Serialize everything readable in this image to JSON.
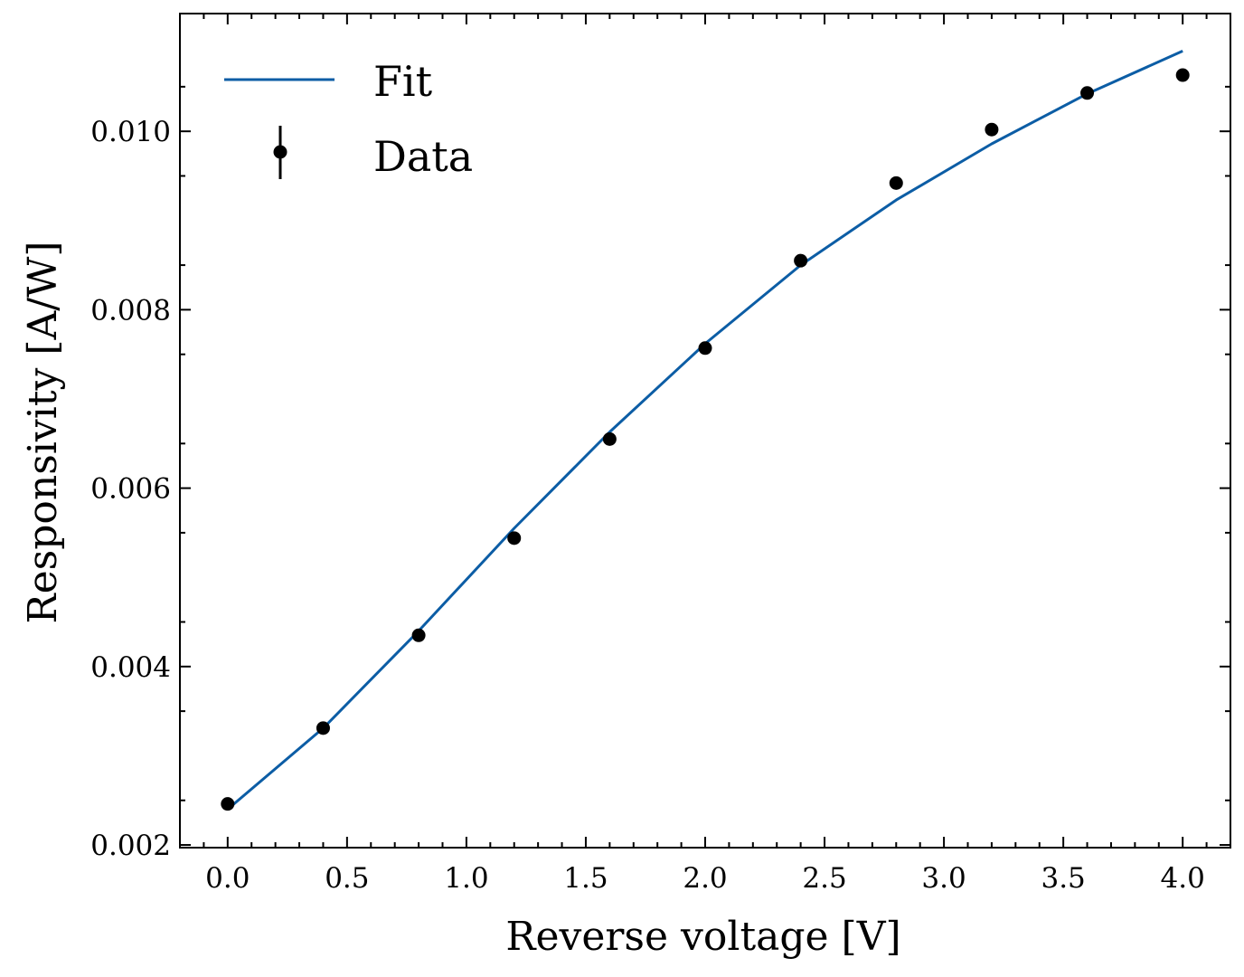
{
  "chart_data": {
    "type": "line",
    "xlabel": "Reverse voltage [V]",
    "ylabel": "Responsivity [A/W]",
    "xlim": [
      -0.2,
      4.2
    ],
    "ylim": [
      0.00197,
      0.01132
    ],
    "xticks": [
      "0.0",
      "0.5",
      "1.0",
      "1.5",
      "2.0",
      "2.5",
      "3.0",
      "3.5",
      "4.0"
    ],
    "yticks": [
      "0.002",
      "0.004",
      "0.006",
      "0.008",
      "0.010"
    ],
    "legend_position": "top-left",
    "series": [
      {
        "name": "Fit",
        "style": "line",
        "color": "#0C5DA5",
        "x": [
          0.0,
          0.4,
          0.8,
          1.2,
          1.6,
          2.0,
          2.4,
          2.8,
          3.2,
          3.6,
          4.0
        ],
        "y": [
          0.0024,
          0.00331,
          0.0044,
          0.00555,
          0.00663,
          0.00762,
          0.0085,
          0.00923,
          0.00986,
          0.01042,
          0.0109
        ]
      },
      {
        "name": "Data",
        "style": "errorbar-points",
        "color": "#000000",
        "x": [
          0.0,
          0.4,
          0.8,
          1.2,
          1.6,
          2.0,
          2.4,
          2.8,
          3.2,
          3.6,
          4.0
        ],
        "y": [
          0.00246,
          0.00331,
          0.00435,
          0.00544,
          0.00655,
          0.00757,
          0.00855,
          0.00942,
          0.01002,
          0.01043,
          0.01063
        ]
      }
    ]
  }
}
